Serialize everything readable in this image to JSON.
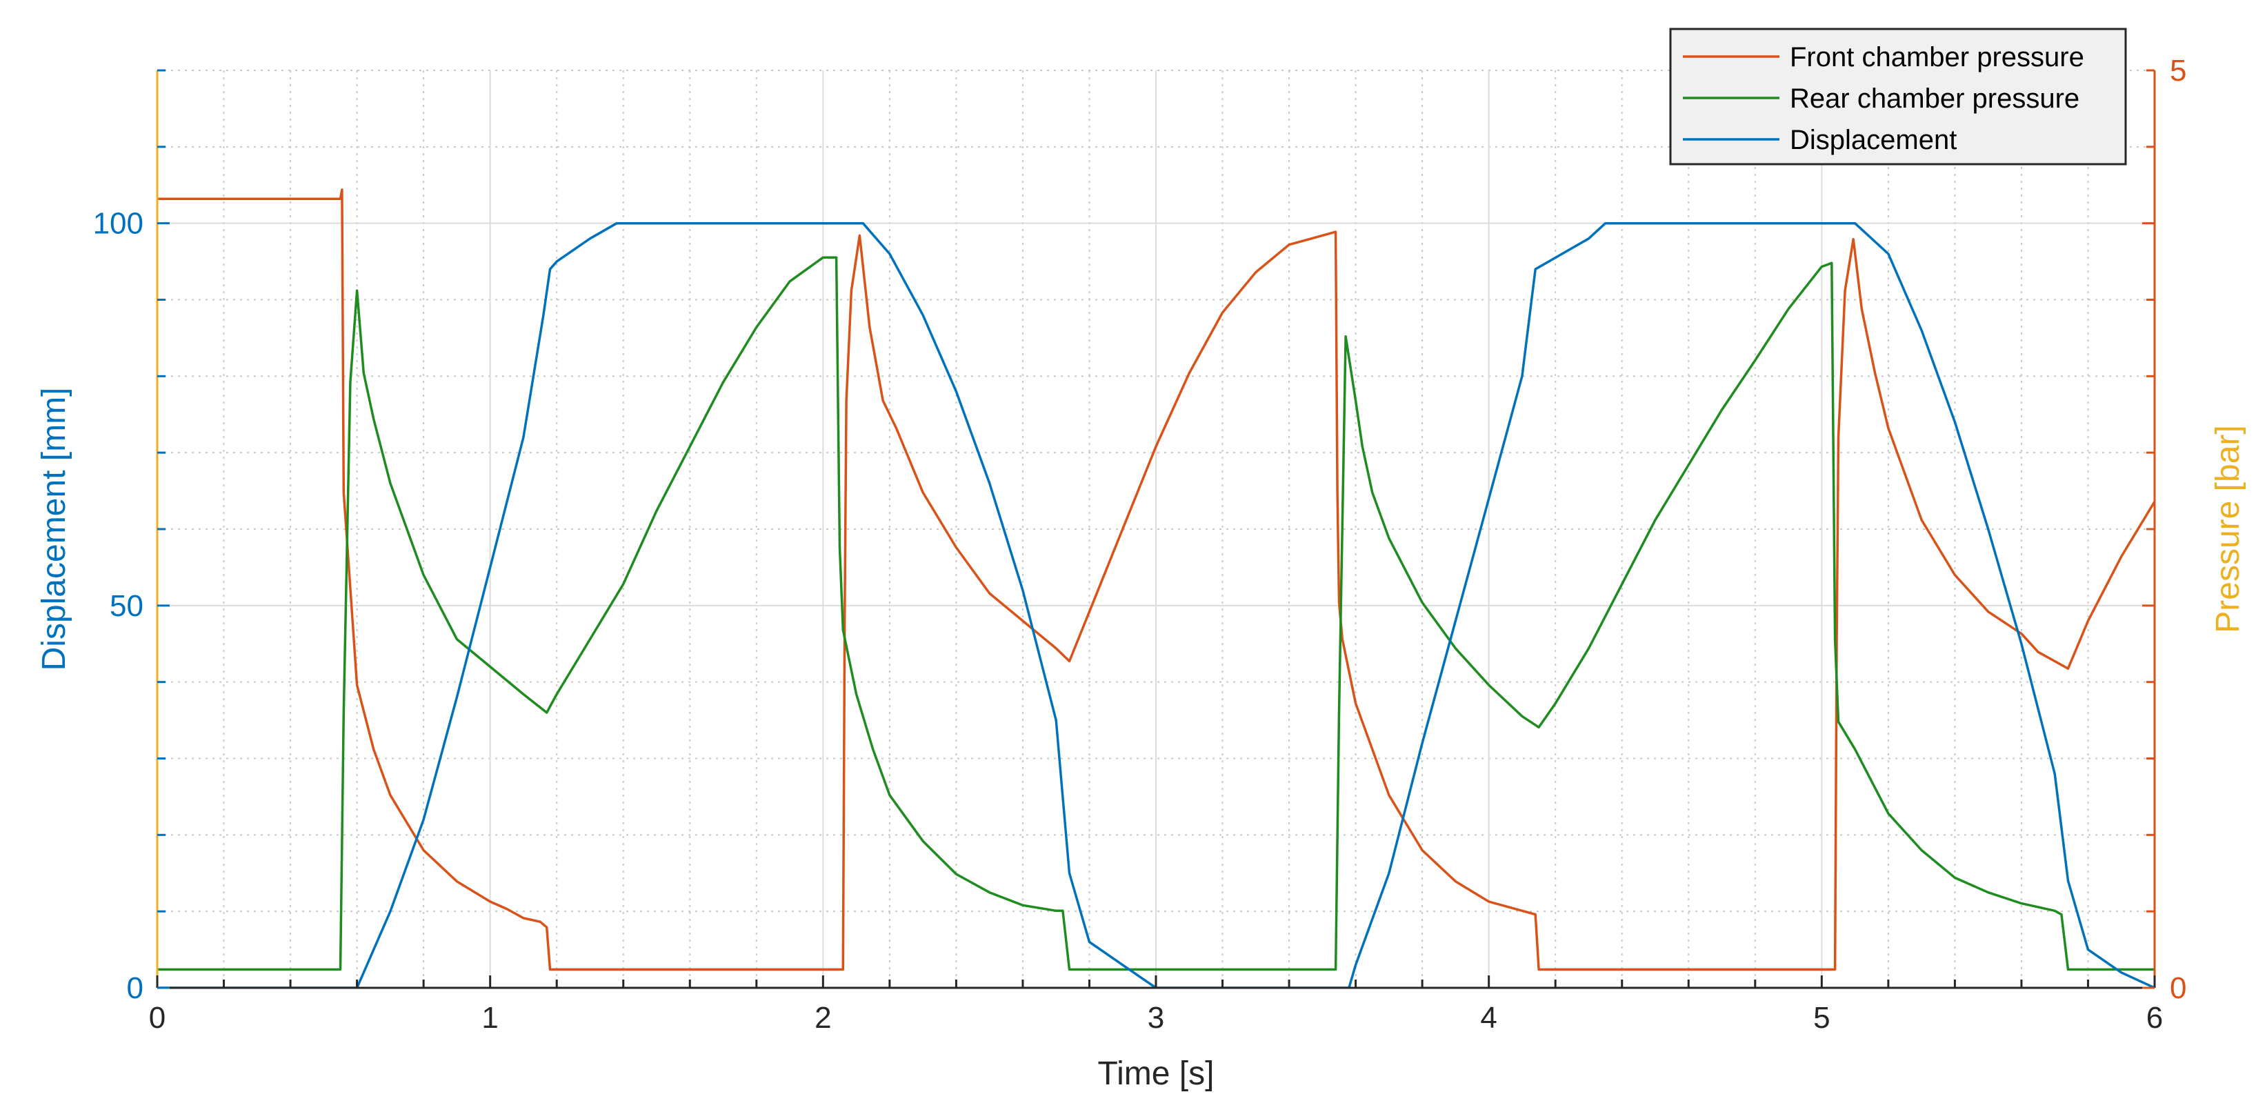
{
  "chart_data": {
    "type": "line",
    "title": "",
    "xlabel": "Time [s]",
    "ylabel_left": "Displacement  [mm]",
    "ylabel_right": "Pressure [bar]",
    "xlim": [
      0,
      6
    ],
    "ylim_left": [
      0,
      120
    ],
    "ylim_right": [
      0,
      5
    ],
    "xticks": [
      0,
      1,
      2,
      3,
      4,
      5,
      6
    ],
    "yticks_left": [
      0,
      50,
      100
    ],
    "yticks_right": [
      0,
      5
    ],
    "grid": true,
    "minor_grid": true,
    "legend_position": "top-right",
    "colors": {
      "front": "#D95319",
      "rear": "#1E8C1E",
      "displacement": "#0072BD",
      "right_label": "#EDB120"
    },
    "series": [
      {
        "name": "Front chamber pressure",
        "axis": "right",
        "color": "#D95319",
        "x": [
          0,
          0.55,
          0.555,
          0.56,
          0.6,
          0.65,
          0.7,
          0.8,
          0.9,
          1.0,
          1.05,
          1.1,
          1.15,
          1.17,
          1.18,
          1.3,
          1.6,
          2.0,
          2.06,
          2.065,
          2.07,
          2.085,
          2.11,
          2.14,
          2.18,
          2.22,
          2.3,
          2.4,
          2.5,
          2.6,
          2.7,
          2.74,
          2.8,
          2.9,
          3.0,
          3.1,
          3.2,
          3.3,
          3.4,
          3.5,
          3.54,
          3.545,
          3.55,
          3.56,
          3.6,
          3.7,
          3.8,
          3.9,
          4.0,
          4.1,
          4.14,
          4.15,
          4.3,
          4.6,
          5.0,
          5.04,
          5.045,
          5.05,
          5.07,
          5.095,
          5.12,
          5.16,
          5.2,
          5.25,
          5.3,
          5.4,
          5.5,
          5.6,
          5.65,
          5.7,
          5.74,
          5.8,
          5.9,
          6.0
        ],
        "values": [
          4.3,
          4.3,
          4.35,
          2.7,
          1.65,
          1.3,
          1.05,
          0.75,
          0.58,
          0.47,
          0.43,
          0.38,
          0.36,
          0.33,
          0.1,
          0.1,
          0.1,
          0.1,
          0.1,
          2.0,
          3.2,
          3.8,
          4.1,
          3.6,
          3.2,
          3.05,
          2.7,
          2.4,
          2.15,
          2.0,
          1.85,
          1.78,
          2.05,
          2.5,
          2.95,
          3.35,
          3.68,
          3.9,
          4.05,
          4.1,
          4.12,
          2.7,
          2.1,
          1.9,
          1.55,
          1.05,
          0.75,
          0.58,
          0.47,
          0.42,
          0.4,
          0.1,
          0.1,
          0.1,
          0.1,
          0.1,
          1.9,
          3.0,
          3.8,
          4.08,
          3.7,
          3.35,
          3.05,
          2.8,
          2.55,
          2.25,
          2.05,
          1.93,
          1.83,
          1.78,
          1.74,
          2.0,
          2.35,
          2.65
        ]
      },
      {
        "name": "Rear chamber pressure",
        "axis": "right",
        "color": "#1E8C1E",
        "x": [
          0,
          0.55,
          0.56,
          0.58,
          0.6,
          0.62,
          0.65,
          0.7,
          0.75,
          0.8,
          0.9,
          1.0,
          1.1,
          1.17,
          1.2,
          1.3,
          1.4,
          1.5,
          1.6,
          1.7,
          1.8,
          1.9,
          2.0,
          2.04,
          2.05,
          2.06,
          2.1,
          2.15,
          2.2,
          2.3,
          2.4,
          2.5,
          2.6,
          2.7,
          2.72,
          2.74,
          2.8,
          3.0,
          3.2,
          3.4,
          3.54,
          3.55,
          3.57,
          3.6,
          3.62,
          3.65,
          3.7,
          3.8,
          3.9,
          4.0,
          4.1,
          4.15,
          4.2,
          4.3,
          4.4,
          4.5,
          4.6,
          4.7,
          4.8,
          4.9,
          5.0,
          5.03,
          5.04,
          5.05,
          5.1,
          5.2,
          5.3,
          5.4,
          5.5,
          5.6,
          5.7,
          5.72,
          5.74,
          5.8,
          6.0
        ],
        "values": [
          0.1,
          0.1,
          1.5,
          3.3,
          3.8,
          3.35,
          3.1,
          2.75,
          2.5,
          2.25,
          1.9,
          1.75,
          1.6,
          1.5,
          1.6,
          1.9,
          2.2,
          2.6,
          2.95,
          3.3,
          3.6,
          3.85,
          3.98,
          3.98,
          2.4,
          1.95,
          1.6,
          1.3,
          1.05,
          0.8,
          0.62,
          0.52,
          0.45,
          0.42,
          0.42,
          0.1,
          0.1,
          0.1,
          0.1,
          0.1,
          0.1,
          1.5,
          3.55,
          3.2,
          2.95,
          2.7,
          2.45,
          2.1,
          1.85,
          1.65,
          1.48,
          1.42,
          1.55,
          1.85,
          2.2,
          2.55,
          2.85,
          3.15,
          3.42,
          3.7,
          3.93,
          3.95,
          1.9,
          1.45,
          1.3,
          0.95,
          0.75,
          0.6,
          0.52,
          0.46,
          0.42,
          0.4,
          0.1,
          0.1,
          0.1
        ]
      },
      {
        "name": "Displacement",
        "axis": "left",
        "color": "#0072BD",
        "x": [
          0,
          0.6,
          0.62,
          0.7,
          0.8,
          0.9,
          1.0,
          1.1,
          1.16,
          1.18,
          1.2,
          1.3,
          1.38,
          1.5,
          2.0,
          2.12,
          2.2,
          2.3,
          2.4,
          2.5,
          2.6,
          2.7,
          2.74,
          2.8,
          2.9,
          3.0,
          3.2,
          3.5,
          3.58,
          3.6,
          3.7,
          3.8,
          3.9,
          4.0,
          4.1,
          4.14,
          4.18,
          4.3,
          4.35,
          4.5,
          5.0,
          5.1,
          5.2,
          5.3,
          5.4,
          5.5,
          5.6,
          5.7,
          5.74,
          5.8,
          5.9,
          6.0
        ],
        "values": [
          0,
          0,
          2,
          10,
          22,
          38,
          55,
          72,
          88,
          94,
          95,
          98,
          100,
          100,
          100,
          100,
          96,
          88,
          78,
          66,
          52,
          35,
          15,
          6,
          3,
          0,
          0,
          0,
          0,
          3,
          15,
          32,
          48,
          64,
          80,
          94,
          95,
          98,
          100,
          100,
          100,
          100,
          96,
          86,
          74,
          60,
          45,
          28,
          14,
          5,
          2,
          0
        ]
      }
    ]
  }
}
